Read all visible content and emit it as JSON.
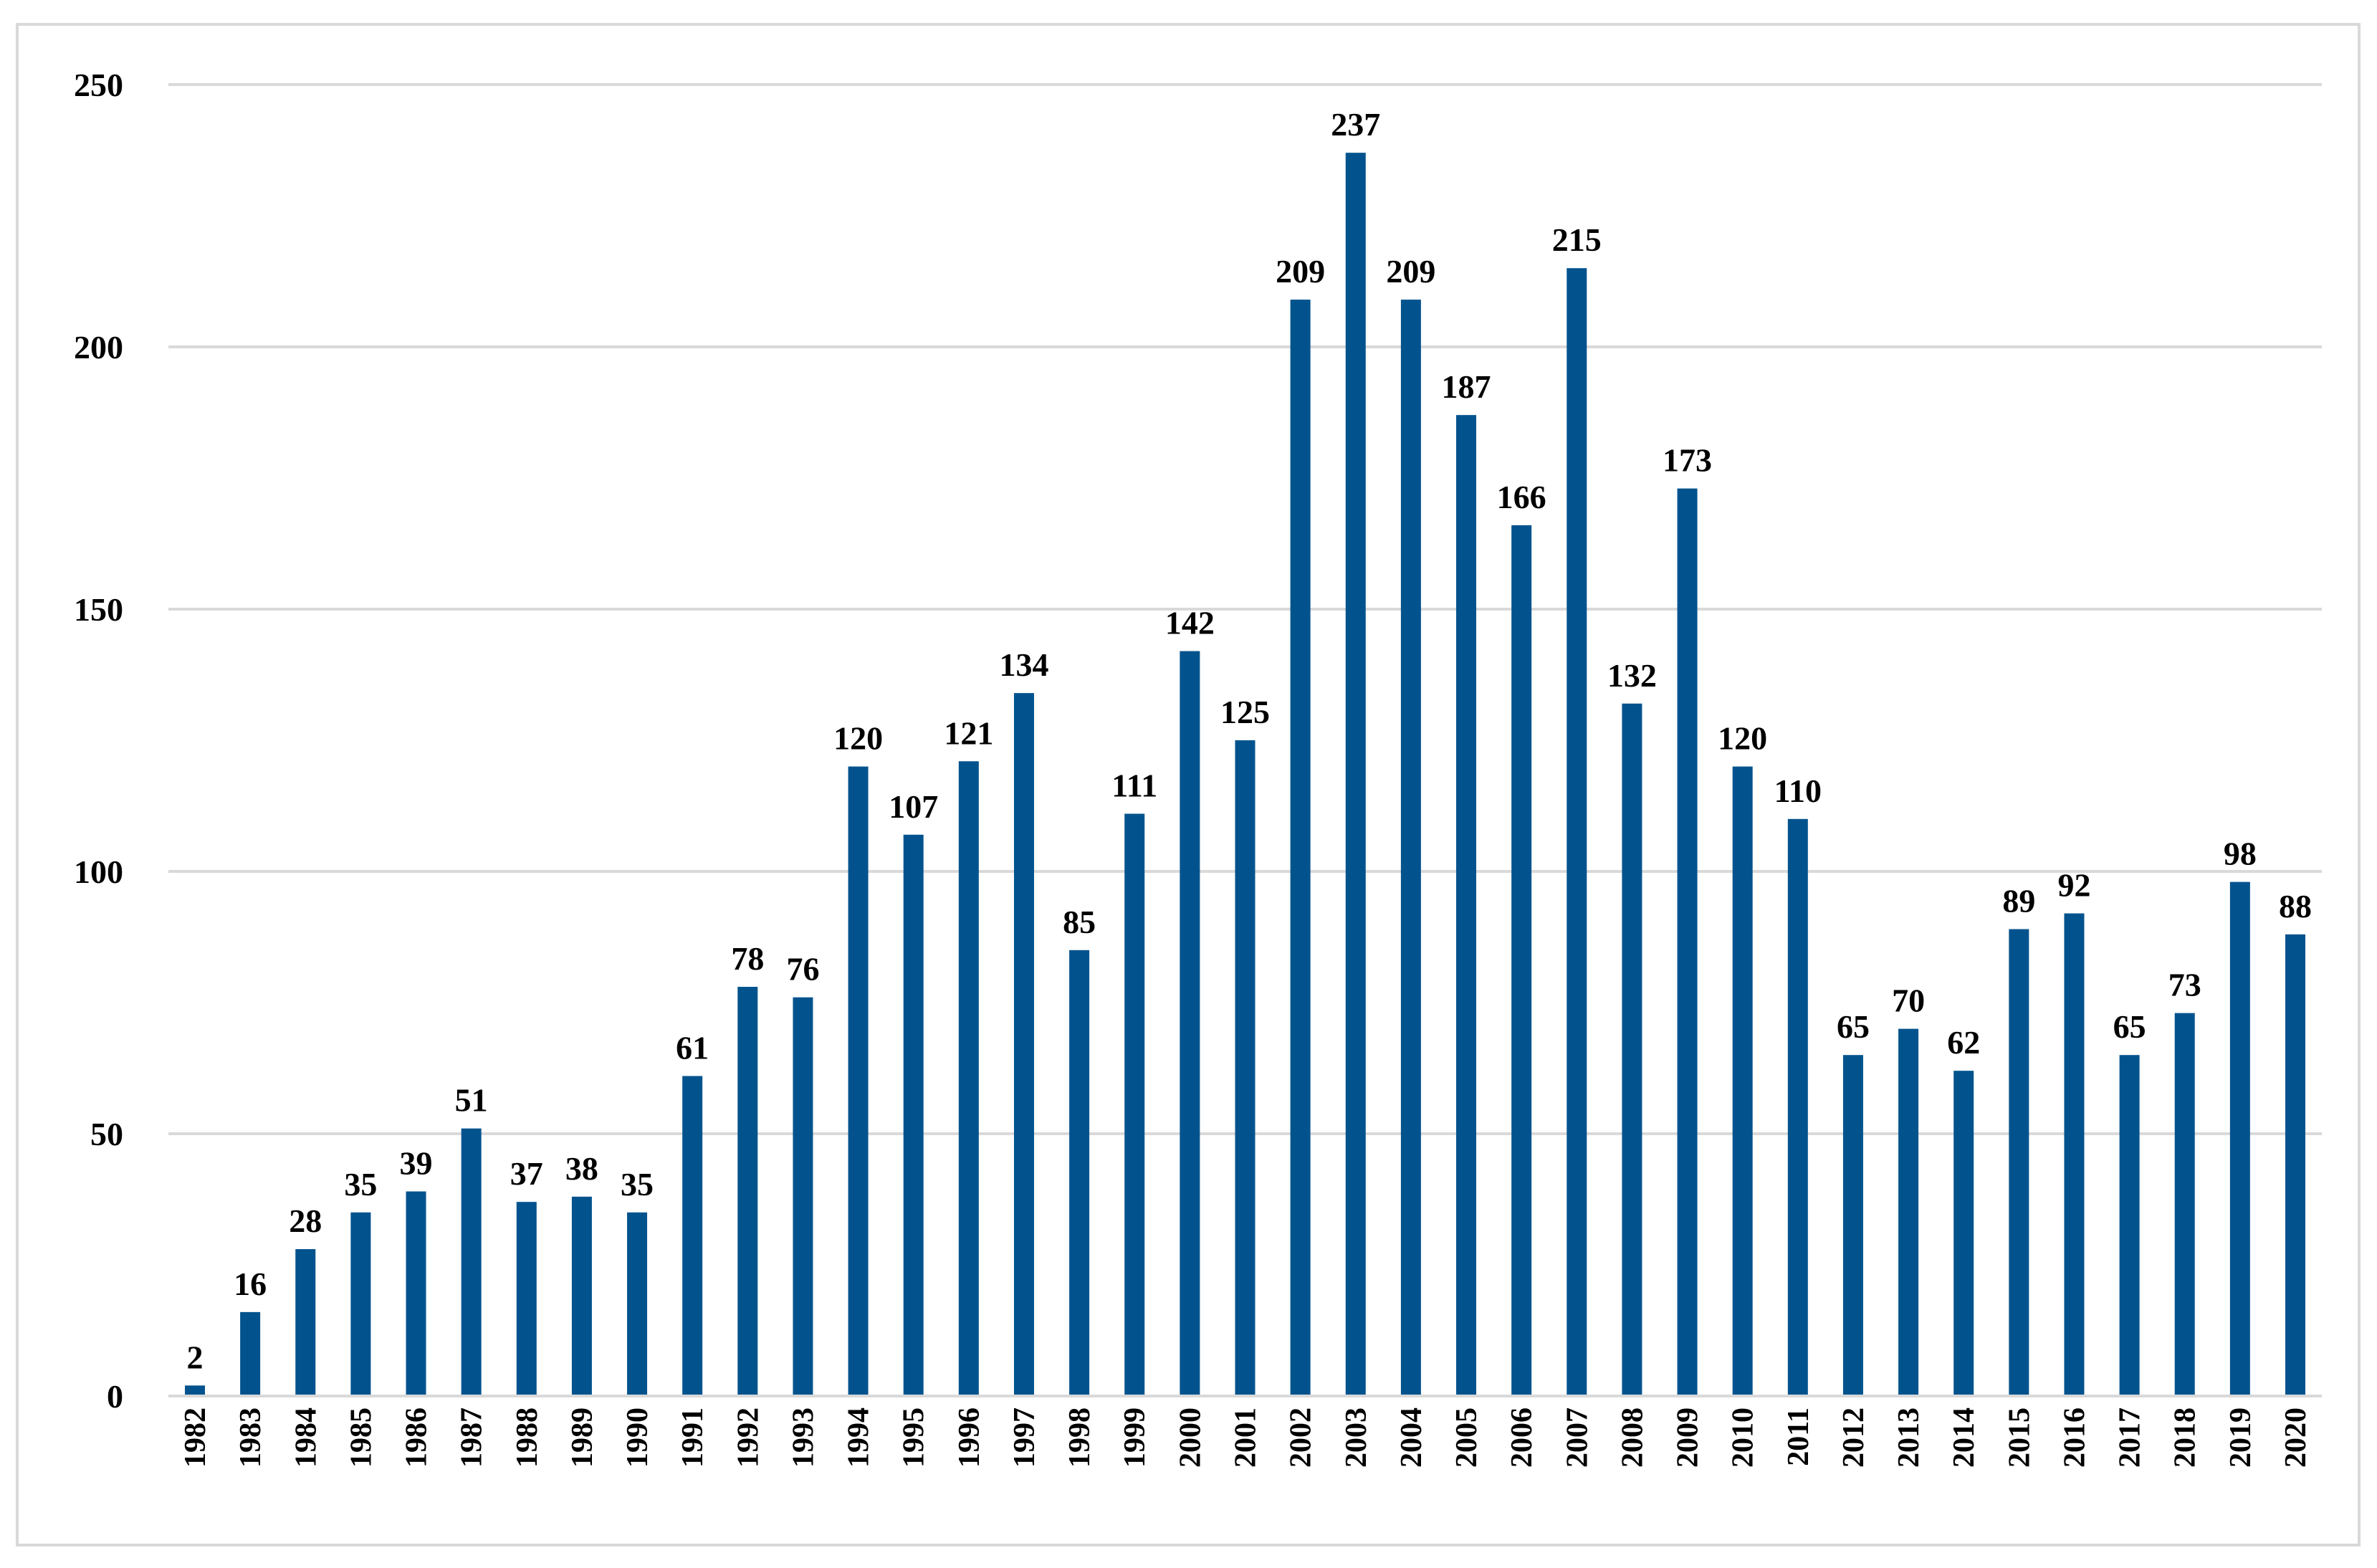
{
  "colors": {
    "bar": "#02538d",
    "grid": "#d9d9d9",
    "border": "#d9d9d9",
    "text": "#000000"
  },
  "chart_data": {
    "type": "bar",
    "title": "",
    "xlabel": "",
    "ylabel": "",
    "ylim": [
      0,
      250
    ],
    "yticks": [
      0,
      50,
      100,
      150,
      200,
      250
    ],
    "grid": true,
    "legend": "none",
    "categories": [
      "1982",
      "1983",
      "1984",
      "1985",
      "1986",
      "1987",
      "1988",
      "1989",
      "1990",
      "1991",
      "1992",
      "1993",
      "1994",
      "1995",
      "1996",
      "1997",
      "1998",
      "1999",
      "2000",
      "2001",
      "2002",
      "2003",
      "2004",
      "2005",
      "2006",
      "2007",
      "2008",
      "2009",
      "2010",
      "2011",
      "2012",
      "2013",
      "2014",
      "2015",
      "2016",
      "2017",
      "2018",
      "2019",
      "2020"
    ],
    "values": [
      2,
      16,
      28,
      35,
      39,
      51,
      37,
      38,
      35,
      61,
      78,
      76,
      120,
      107,
      121,
      134,
      85,
      111,
      142,
      125,
      209,
      237,
      209,
      187,
      166,
      215,
      132,
      173,
      120,
      110,
      65,
      70,
      62,
      89,
      92,
      65,
      73,
      98,
      88
    ]
  }
}
